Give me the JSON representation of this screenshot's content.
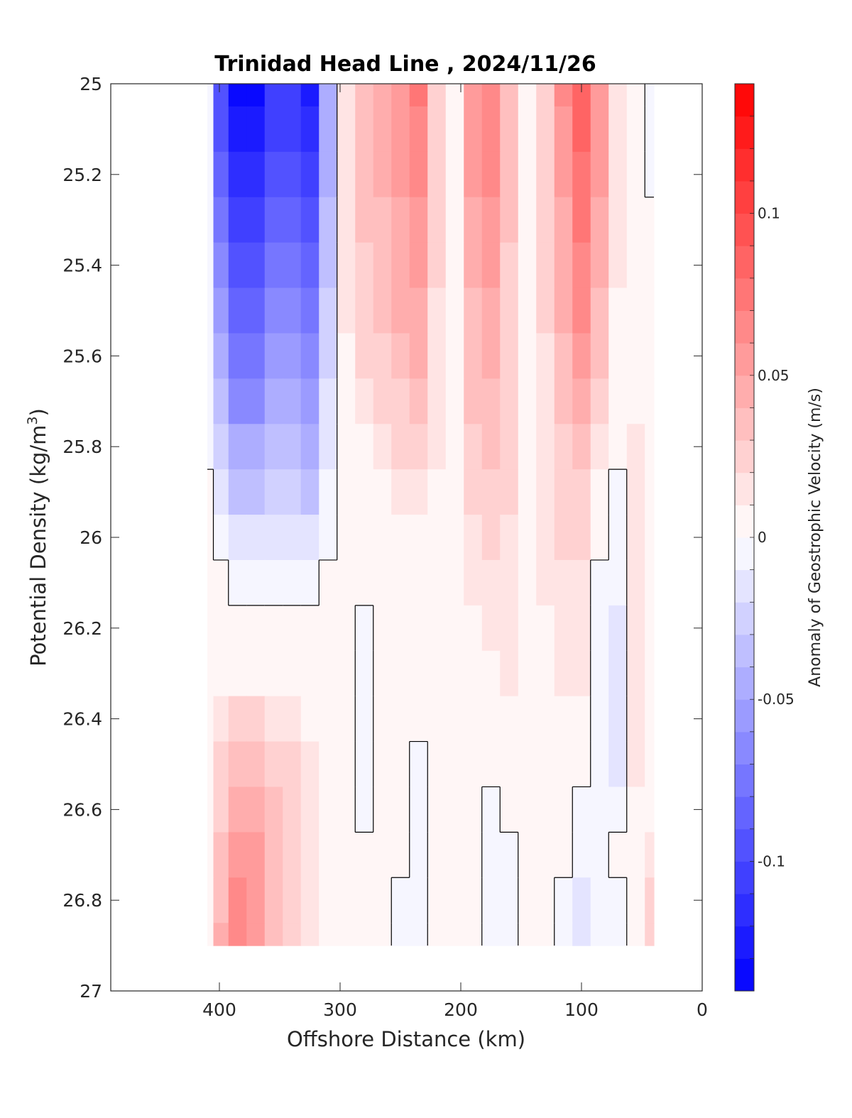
{
  "chart_data": {
    "type": "heatmap",
    "title": "Trinidad Head Line , 2024/11/26",
    "xlabel": "Offshore Distance (km)",
    "ylabel": "Potential Density (kg/m",
    "ylabel_superscript": "3",
    "ylabel_suffix": ")",
    "xlim": [
      490,
      0
    ],
    "ylim": [
      25,
      27
    ],
    "y_reversed": true,
    "x_ticks": [
      "400",
      "300",
      "200",
      "100",
      "0"
    ],
    "x_tick_values": [
      400,
      300,
      200,
      100,
      0
    ],
    "y_ticks": [
      "25",
      "25.2",
      "25.4",
      "25.6",
      "25.8",
      "26",
      "26.2",
      "26.4",
      "26.6",
      "26.8",
      "27"
    ],
    "y_tick_values": [
      25,
      25.2,
      25.4,
      25.6,
      25.8,
      26,
      26.2,
      26.4,
      26.6,
      26.8,
      27
    ],
    "grid": false,
    "colorbar": {
      "label": "Anomaly of Geostrophic Velocity (m/s)",
      "range": [
        -0.14,
        0.14
      ],
      "levels": 28,
      "ticks": [
        "0.1",
        "0.05",
        "0",
        "-0.05",
        "-0.1"
      ],
      "tick_values": [
        0.1,
        0.05,
        0,
        -0.05,
        -0.1
      ],
      "colors": {
        "negative": "#0000ff",
        "zero": "#ffffff",
        "positive": "#ff0000"
      }
    },
    "data_extent": {
      "x": [
        410,
        40
      ],
      "y": [
        25,
        26.9
      ]
    },
    "x": [
      410,
      400,
      385,
      370,
      355,
      340,
      325,
      310,
      295,
      280,
      265,
      250,
      235,
      220,
      205,
      190,
      175,
      160,
      145,
      130,
      115,
      100,
      85,
      70,
      55,
      40
    ],
    "y": [
      25.0,
      25.1,
      25.2,
      25.3,
      25.4,
      25.5,
      25.6,
      25.7,
      25.8,
      25.9,
      26.0,
      26.1,
      26.2,
      26.3,
      26.4,
      26.5,
      26.6,
      26.7,
      26.8,
      26.9
    ],
    "z": [
      [
        -0.01,
        -0.1,
        -0.14,
        -0.14,
        -0.11,
        -0.11,
        -0.13,
        -0.05,
        0.01,
        0.03,
        0.04,
        0.05,
        0.07,
        0.02,
        0.0,
        0.05,
        0.06,
        0.03,
        0.0,
        0.02,
        0.06,
        0.08,
        0.05,
        0.01,
        0.0,
        -0.01
      ],
      [
        -0.01,
        -0.1,
        -0.13,
        -0.13,
        -0.11,
        -0.11,
        -0.12,
        -0.05,
        0.01,
        0.03,
        0.04,
        0.05,
        0.06,
        0.02,
        0.0,
        0.05,
        0.06,
        0.03,
        0.0,
        0.02,
        0.05,
        0.08,
        0.05,
        0.01,
        0.0,
        -0.01
      ],
      [
        -0.01,
        -0.09,
        -0.12,
        -0.12,
        -0.1,
        -0.1,
        -0.11,
        -0.05,
        0.01,
        0.03,
        0.04,
        0.05,
        0.06,
        0.02,
        0.0,
        0.05,
        0.06,
        0.03,
        0.0,
        0.02,
        0.05,
        0.07,
        0.05,
        0.01,
        0.0,
        -0.01
      ],
      [
        -0.01,
        -0.08,
        -0.11,
        -0.11,
        -0.09,
        -0.09,
        -0.1,
        -0.04,
        0.01,
        0.03,
        0.03,
        0.04,
        0.05,
        0.02,
        0.0,
        0.04,
        0.05,
        0.03,
        0.0,
        0.02,
        0.04,
        0.07,
        0.04,
        0.01,
        0.0,
        0.0
      ],
      [
        -0.01,
        -0.07,
        -0.1,
        -0.1,
        -0.08,
        -0.08,
        -0.09,
        -0.04,
        0.01,
        0.02,
        0.03,
        0.04,
        0.05,
        0.02,
        0.0,
        0.04,
        0.05,
        0.02,
        0.0,
        0.02,
        0.04,
        0.06,
        0.04,
        0.01,
        0.0,
        0.0
      ],
      [
        -0.01,
        -0.06,
        -0.09,
        -0.09,
        -0.07,
        -0.07,
        -0.08,
        -0.03,
        0.01,
        0.02,
        0.03,
        0.04,
        0.04,
        0.01,
        0.0,
        0.03,
        0.04,
        0.02,
        0.0,
        0.02,
        0.04,
        0.06,
        0.03,
        0.0,
        0.0,
        0.0
      ],
      [
        -0.01,
        -0.05,
        -0.08,
        -0.08,
        -0.06,
        -0.06,
        -0.07,
        -0.03,
        0.0,
        0.02,
        0.02,
        0.03,
        0.04,
        0.01,
        0.0,
        0.03,
        0.04,
        0.02,
        0.0,
        0.01,
        0.03,
        0.05,
        0.03,
        0.0,
        0.0,
        0.0
      ],
      [
        -0.01,
        -0.04,
        -0.07,
        -0.07,
        -0.05,
        -0.05,
        -0.06,
        -0.02,
        0.0,
        0.01,
        0.02,
        0.02,
        0.03,
        0.01,
        0.0,
        0.03,
        0.03,
        0.02,
        0.0,
        0.01,
        0.03,
        0.04,
        0.02,
        0.0,
        0.0,
        0.0
      ],
      [
        -0.01,
        -0.03,
        -0.05,
        -0.05,
        -0.04,
        -0.04,
        -0.05,
        -0.02,
        0.0,
        0.0,
        0.01,
        0.02,
        0.02,
        0.01,
        0.0,
        0.02,
        0.03,
        0.02,
        0.0,
        0.01,
        0.02,
        0.03,
        0.01,
        0.0,
        0.01,
        0.0
      ],
      [
        0.0,
        -0.02,
        -0.04,
        -0.04,
        -0.03,
        -0.03,
        -0.04,
        -0.01,
        0.0,
        0.0,
        0.0,
        0.01,
        0.01,
        0.0,
        0.0,
        0.02,
        0.02,
        0.02,
        0.0,
        0.01,
        0.02,
        0.02,
        0.0,
        -0.01,
        0.01,
        0.0
      ],
      [
        0.0,
        -0.01,
        -0.02,
        -0.02,
        -0.02,
        -0.02,
        -0.02,
        -0.01,
        0.0,
        0.0,
        0.0,
        0.0,
        0.0,
        0.0,
        0.0,
        0.01,
        0.02,
        0.01,
        0.0,
        0.01,
        0.02,
        0.02,
        0.0,
        -0.01,
        0.01,
        0.0
      ],
      [
        0.0,
        0.0,
        -0.01,
        -0.01,
        -0.01,
        -0.01,
        -0.01,
        0.0,
        0.0,
        0.0,
        0.0,
        0.0,
        0.0,
        0.0,
        0.0,
        0.01,
        0.01,
        0.01,
        0.0,
        0.01,
        0.01,
        0.01,
        -0.01,
        -0.01,
        0.01,
        0.0
      ],
      [
        0.0,
        0.0,
        0.0,
        0.0,
        0.0,
        0.0,
        0.0,
        0.0,
        0.0,
        -0.01,
        0.0,
        0.0,
        0.0,
        0.0,
        0.0,
        0.0,
        0.01,
        0.01,
        0.0,
        0.0,
        0.01,
        0.01,
        -0.01,
        -0.02,
        0.01,
        0.0
      ],
      [
        0.0,
        0.0,
        0.0,
        0.0,
        0.0,
        0.0,
        0.0,
        0.0,
        0.0,
        -0.01,
        0.0,
        0.0,
        0.0,
        0.0,
        0.0,
        0.0,
        0.0,
        0.01,
        0.0,
        0.0,
        0.01,
        0.01,
        -0.01,
        -0.02,
        0.01,
        0.0
      ],
      [
        0.0,
        0.01,
        0.02,
        0.02,
        0.01,
        0.01,
        0.0,
        0.0,
        0.0,
        -0.01,
        0.0,
        0.0,
        0.0,
        0.0,
        0.0,
        0.0,
        0.0,
        0.0,
        0.0,
        0.0,
        0.0,
        0.0,
        -0.01,
        -0.02,
        0.01,
        0.0
      ],
      [
        0.0,
        0.02,
        0.03,
        0.03,
        0.02,
        0.02,
        0.01,
        0.0,
        0.0,
        -0.01,
        0.0,
        0.0,
        -0.01,
        0.0,
        0.0,
        0.0,
        0.0,
        0.0,
        0.0,
        0.0,
        0.0,
        0.0,
        -0.01,
        -0.02,
        0.01,
        0.0
      ],
      [
        0.0,
        0.02,
        0.04,
        0.04,
        0.03,
        0.02,
        0.01,
        0.0,
        0.0,
        -0.01,
        0.0,
        0.0,
        -0.01,
        0.0,
        0.0,
        0.0,
        -0.01,
        0.0,
        0.0,
        0.0,
        0.0,
        -0.01,
        -0.01,
        -0.01,
        0.0,
        0.0
      ],
      [
        0.0,
        0.03,
        0.05,
        0.05,
        0.03,
        0.02,
        0.01,
        0.0,
        0.0,
        0.0,
        0.0,
        0.0,
        -0.01,
        0.0,
        0.0,
        0.0,
        -0.01,
        -0.01,
        0.0,
        0.0,
        0.0,
        -0.01,
        -0.01,
        0.0,
        0.0,
        0.01
      ],
      [
        0.0,
        0.03,
        0.06,
        0.05,
        0.03,
        0.02,
        0.01,
        0.0,
        0.0,
        0.0,
        0.0,
        -0.01,
        -0.01,
        0.0,
        0.0,
        0.0,
        -0.01,
        -0.01,
        0.0,
        0.0,
        -0.01,
        -0.02,
        -0.01,
        -0.01,
        0.0,
        0.02
      ],
      [
        0.0,
        0.04,
        0.06,
        0.05,
        0.03,
        0.02,
        0.01,
        0.0,
        0.0,
        0.0,
        0.0,
        -0.01,
        -0.01,
        0.0,
        0.0,
        0.0,
        -0.01,
        -0.01,
        0.0,
        0.0,
        -0.01,
        -0.02,
        -0.01,
        -0.01,
        0.0,
        0.02
      ]
    ]
  }
}
